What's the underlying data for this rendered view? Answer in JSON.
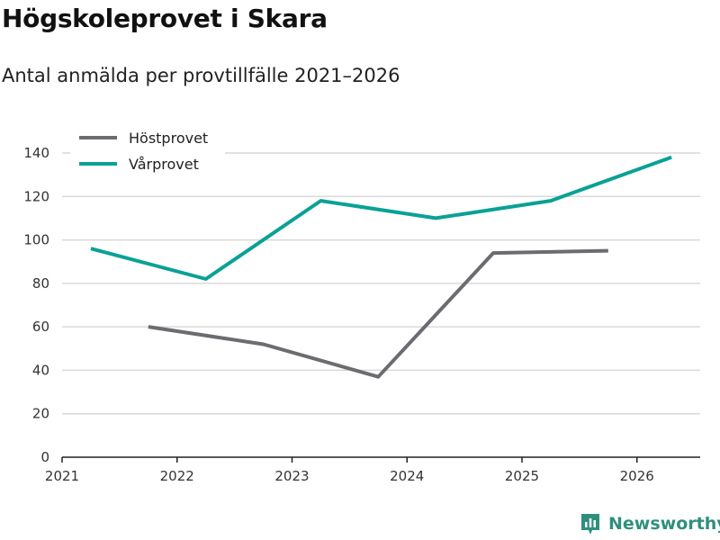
{
  "title": "Högskoleprovet i Skara",
  "subtitle": "Antal anmälda per provtillfälle 2021–2026",
  "brand": {
    "name": "Newsworthy",
    "color": "#2f8f7e"
  },
  "colors": {
    "hostprovet": "#6e6b70",
    "varprovet": "#0aa195",
    "grid": "#d9d9d9",
    "axis": "#222222"
  },
  "chart_data": {
    "type": "line",
    "title": "Högskoleprovet i Skara",
    "subtitle": "Antal anmälda per provtillfälle 2021–2026",
    "xlabel": "",
    "ylabel": "",
    "xlim": [
      2021,
      2026.55
    ],
    "ylim": [
      0,
      140
    ],
    "xticks": [
      2021,
      2022,
      2023,
      2024,
      2025,
      2026
    ],
    "yticks": [
      0,
      20,
      40,
      60,
      80,
      100,
      120,
      140
    ],
    "legend": "top-left",
    "grid": true,
    "series": [
      {
        "name": "Höstprovet",
        "color": "#6e6b70",
        "points": [
          [
            2021.75,
            60
          ],
          [
            2022.75,
            52
          ],
          [
            2023.75,
            37
          ],
          [
            2024.75,
            94
          ],
          [
            2025.75,
            95
          ]
        ]
      },
      {
        "name": "Vårprovet",
        "color": "#0aa195",
        "points": [
          [
            2021.25,
            96
          ],
          [
            2022.25,
            82
          ],
          [
            2023.25,
            118
          ],
          [
            2024.25,
            110
          ],
          [
            2025.25,
            118
          ],
          [
            2026.3,
            138
          ]
        ]
      }
    ]
  }
}
